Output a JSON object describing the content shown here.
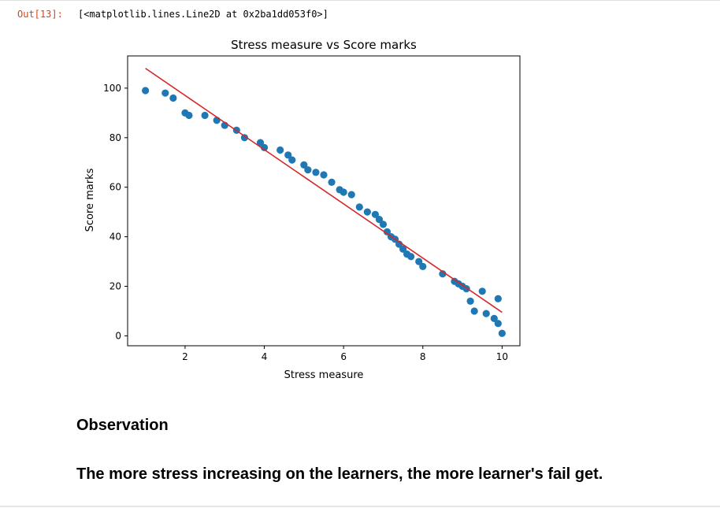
{
  "output": {
    "prompt": "Out[13]:",
    "text": "[<matplotlib.lines.Line2D at 0x2ba1dd053f0>]"
  },
  "chart_data": {
    "type": "scatter",
    "title": "Stress measure vs Score marks",
    "xlabel": "Stress measure",
    "ylabel": "Score marks",
    "xlim": [
      0.55,
      10.45
    ],
    "ylim": [
      -4,
      113
    ],
    "xticks": [
      2,
      4,
      6,
      8,
      10
    ],
    "yticks": [
      0,
      20,
      40,
      60,
      80,
      100
    ],
    "grid": false,
    "colors": {
      "points": "#1f77b4",
      "fit_line": "#d62728"
    },
    "points": [
      [
        1.0,
        99
      ],
      [
        1.5,
        98
      ],
      [
        1.7,
        96
      ],
      [
        2.0,
        90
      ],
      [
        2.1,
        89
      ],
      [
        2.5,
        89
      ],
      [
        2.8,
        87
      ],
      [
        3.0,
        85
      ],
      [
        3.3,
        83
      ],
      [
        3.5,
        80
      ],
      [
        3.9,
        78
      ],
      [
        4.0,
        76
      ],
      [
        4.4,
        75
      ],
      [
        4.6,
        73
      ],
      [
        4.7,
        71
      ],
      [
        5.0,
        69
      ],
      [
        5.1,
        67
      ],
      [
        5.3,
        66
      ],
      [
        5.5,
        65
      ],
      [
        5.7,
        62
      ],
      [
        5.9,
        59
      ],
      [
        6.0,
        58
      ],
      [
        6.2,
        57
      ],
      [
        6.4,
        52
      ],
      [
        6.6,
        50
      ],
      [
        6.8,
        49
      ],
      [
        6.9,
        47
      ],
      [
        7.0,
        45
      ],
      [
        7.1,
        42
      ],
      [
        7.2,
        40
      ],
      [
        7.3,
        39
      ],
      [
        7.4,
        37
      ],
      [
        7.5,
        35
      ],
      [
        7.6,
        33
      ],
      [
        7.7,
        32
      ],
      [
        7.9,
        30
      ],
      [
        8.0,
        28
      ],
      [
        8.5,
        25
      ],
      [
        8.8,
        22
      ],
      [
        8.9,
        21
      ],
      [
        9.0,
        20
      ],
      [
        9.1,
        19
      ],
      [
        9.2,
        14
      ],
      [
        9.3,
        10
      ],
      [
        9.5,
        18
      ],
      [
        9.6,
        9
      ],
      [
        9.8,
        7
      ],
      [
        9.9,
        15
      ],
      [
        9.9,
        5
      ],
      [
        10.0,
        1
      ]
    ],
    "fit_line": {
      "x": [
        1.0,
        10.0
      ],
      "y": [
        108,
        9.5
      ]
    }
  },
  "markdown": {
    "heading": "Observation",
    "text": "The more stress increasing on the learners, the more learner's fail get."
  }
}
